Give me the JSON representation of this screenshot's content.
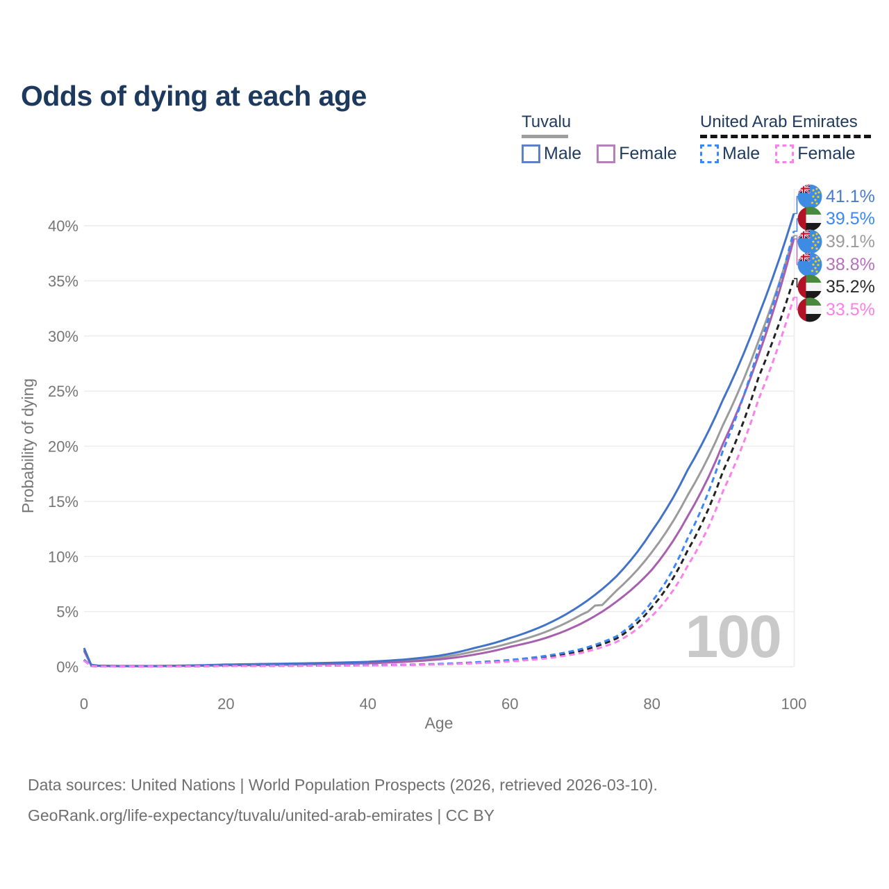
{
  "title": "Odds of dying at each age",
  "legend": {
    "groups": [
      {
        "name": "Tuvalu",
        "line_style": "solid",
        "underline_color": "#9e9e9e",
        "items": [
          {
            "label": "Male",
            "color": "#5b82c4"
          },
          {
            "label": "Female",
            "color": "#b77fbe"
          }
        ]
      },
      {
        "name": "United Arab Emirates",
        "line_style": "dashed",
        "underline_color": "#141414",
        "items": [
          {
            "label": "Male",
            "color": "#3c87f7"
          },
          {
            "label": "Female",
            "color": "#fb80e9"
          }
        ]
      }
    ]
  },
  "end_labels": [
    {
      "value": "41.1%",
      "color": "#4a7ccd",
      "flag": "tuvalu",
      "series": "tuvalu-male"
    },
    {
      "value": "39.5%",
      "color": "#3c87f7",
      "flag": "uae",
      "series": "uae-male"
    },
    {
      "value": "39.1%",
      "color": "#9b9b9b",
      "flag": "tuvalu",
      "series": "tuvalu-both"
    },
    {
      "value": "38.8%",
      "color": "#b671bd",
      "flag": "tuvalu",
      "series": "tuvalu-female"
    },
    {
      "value": "35.2%",
      "color": "#2b2b2b",
      "flag": "uae",
      "series": "uae-both"
    },
    {
      "value": "33.5%",
      "color": "#fb80e9",
      "flag": "uae",
      "series": "uae-female"
    }
  ],
  "footer": {
    "line1": "Data sources: United Nations | World Population Prospects (2026, retrieved 2026-03-10).",
    "line2": "GeoRank.org/life-expectancy/tuvalu/united-arab-emirates | CC BY"
  },
  "chart_data": {
    "type": "line",
    "title": "Odds of dying at each age",
    "xlabel": "Age",
    "ylabel": "Probability of dying",
    "xlim": [
      0,
      100
    ],
    "ylim_pct": [
      0,
      40
    ],
    "xticks": [
      0,
      20,
      40,
      60,
      80,
      100
    ],
    "ytick_labels": [
      "0%",
      "5%",
      "10%",
      "15%",
      "20%",
      "25%",
      "30%",
      "35%",
      "40%"
    ],
    "ytick_values_pct": [
      0,
      5,
      10,
      15,
      20,
      25,
      30,
      35,
      40
    ],
    "grid": "horizontal",
    "legend_position": "top-right",
    "age_counter_watermark": "100",
    "series": [
      {
        "id": "tuvalu-male",
        "name": "Tuvalu — Male",
        "style": "solid",
        "color": "#4273c8",
        "end_value_pct": 41.1,
        "ages": [
          0,
          1,
          2,
          5,
          10,
          15,
          20,
          25,
          30,
          35,
          40,
          45,
          50,
          55,
          60,
          65,
          70,
          75,
          80,
          85,
          90,
          95,
          100
        ],
        "values_pct": [
          1.7,
          0.18,
          0.1,
          0.07,
          0.07,
          0.12,
          0.2,
          0.25,
          0.3,
          0.36,
          0.45,
          0.65,
          1.0,
          1.7,
          2.6,
          3.8,
          5.6,
          8.2,
          12.3,
          17.8,
          24.2,
          31.8,
          41.1
        ]
      },
      {
        "id": "tuvalu-both",
        "name": "Tuvalu — Both sexes",
        "style": "solid",
        "color": "#9b9b9b",
        "end_value_pct": 39.1,
        "ages": [
          0,
          1,
          2,
          5,
          10,
          15,
          20,
          25,
          30,
          35,
          40,
          45,
          50,
          55,
          60,
          65,
          70,
          71,
          72,
          73,
          74,
          75,
          80,
          85,
          90,
          95,
          100
        ],
        "values_pct": [
          1.55,
          0.16,
          0.09,
          0.06,
          0.06,
          0.1,
          0.17,
          0.21,
          0.25,
          0.3,
          0.38,
          0.54,
          0.83,
          1.4,
          2.15,
          3.15,
          4.7,
          5.0,
          5.55,
          5.6,
          6.25,
          6.9,
          10.4,
          15.5,
          21.9,
          29.5,
          39.1
        ]
      },
      {
        "id": "tuvalu-female",
        "name": "Tuvalu — Female",
        "style": "solid",
        "color": "#a75fae",
        "end_value_pct": 38.8,
        "ages": [
          0,
          1,
          2,
          5,
          10,
          15,
          20,
          25,
          30,
          35,
          40,
          45,
          50,
          55,
          60,
          65,
          70,
          75,
          80,
          85,
          90,
          95,
          100
        ],
        "values_pct": [
          1.45,
          0.14,
          0.08,
          0.05,
          0.05,
          0.08,
          0.13,
          0.16,
          0.2,
          0.25,
          0.31,
          0.44,
          0.66,
          1.1,
          1.8,
          2.6,
          3.9,
          5.9,
          8.8,
          13.6,
          20.2,
          28.2,
          38.8
        ]
      },
      {
        "id": "uae-both",
        "name": "United Arab Emirates — Both sexes",
        "style": "dashed",
        "color": "#222222",
        "end_value_pct": 35.2,
        "ages": [
          0,
          1,
          2,
          5,
          10,
          15,
          20,
          25,
          30,
          35,
          40,
          45,
          50,
          55,
          60,
          65,
          70,
          75,
          80,
          85,
          90,
          95,
          100
        ],
        "values_pct": [
          0.6,
          0.065,
          0.035,
          0.028,
          0.028,
          0.045,
          0.07,
          0.08,
          0.09,
          0.11,
          0.13,
          0.17,
          0.24,
          0.36,
          0.56,
          0.88,
          1.45,
          2.55,
          5.4,
          10.5,
          17.7,
          26.2,
          35.2
        ]
      },
      {
        "id": "uae-male",
        "name": "United Arab Emirates — Male",
        "style": "dashed",
        "color": "#3c87f7",
        "end_value_pct": 39.5,
        "ages": [
          0,
          1,
          2,
          5,
          10,
          15,
          20,
          25,
          30,
          35,
          40,
          45,
          50,
          55,
          60,
          65,
          70,
          75,
          80,
          85,
          90,
          95,
          100
        ],
        "values_pct": [
          0.65,
          0.07,
          0.04,
          0.03,
          0.03,
          0.05,
          0.08,
          0.09,
          0.1,
          0.12,
          0.14,
          0.18,
          0.26,
          0.4,
          0.62,
          0.98,
          1.6,
          2.75,
          5.9,
          11.6,
          19.6,
          28.8,
          39.5
        ]
      },
      {
        "id": "uae-female",
        "name": "United Arab Emirates — Female",
        "style": "dashed",
        "color": "#fb80e9",
        "end_value_pct": 33.5,
        "ages": [
          0,
          1,
          2,
          5,
          10,
          15,
          20,
          25,
          30,
          35,
          40,
          45,
          50,
          55,
          60,
          65,
          70,
          75,
          80,
          85,
          90,
          95,
          100
        ],
        "values_pct": [
          0.55,
          0.06,
          0.03,
          0.025,
          0.025,
          0.04,
          0.06,
          0.07,
          0.08,
          0.1,
          0.12,
          0.15,
          0.21,
          0.31,
          0.48,
          0.75,
          1.25,
          2.25,
          4.6,
          9.1,
          15.9,
          24.2,
          33.5
        ]
      }
    ]
  }
}
